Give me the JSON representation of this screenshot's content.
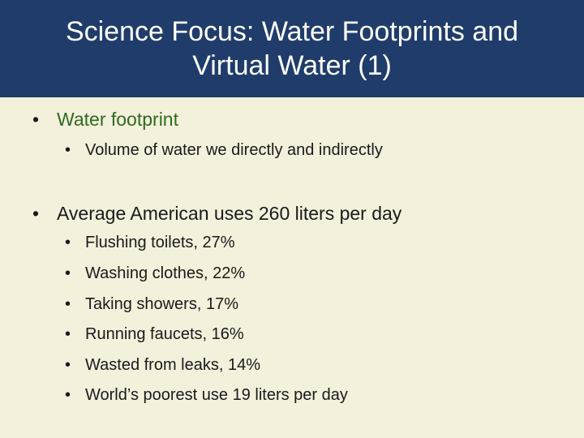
{
  "slide": {
    "title": "Science Focus: Water Footprints and Virtual Water (1)",
    "colors": {
      "title_bg": "#1f3c6b",
      "slide_bg": "#f3f0dc",
      "highlight_text": "#2e6b1f"
    },
    "bullet_glyph": "•",
    "bullets": [
      {
        "text": "Water footprint",
        "highlight": true,
        "sub": [
          "Volume of water we directly and indirectly"
        ]
      },
      {
        "text": "Average American uses 260 liters per day",
        "highlight": false,
        "sub": [
          "Flushing toilets, 27%",
          "Washing clothes, 22%",
          "Taking showers, 17%",
          "Running faucets, 16%",
          "Wasted from leaks, 14%",
          "World’s poorest use 19 liters per day"
        ]
      }
    ]
  }
}
